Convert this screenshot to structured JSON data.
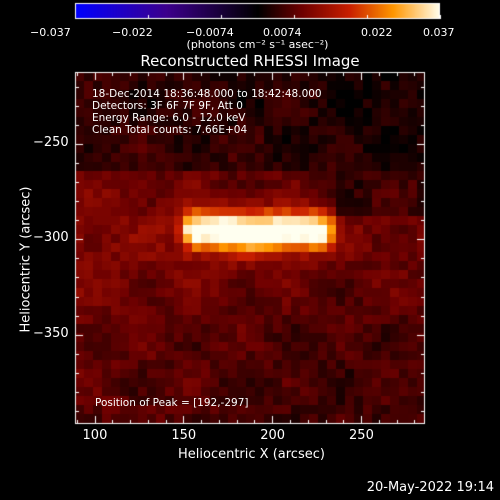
{
  "colorbar": {
    "ticks": [
      "−0.037",
      "−0.022",
      "−0.0074",
      "0.0074",
      "0.022",
      "0.037"
    ],
    "units": "(photons cm⁻² s⁻¹ asec⁻²)",
    "range": [
      -0.037,
      0.037
    ]
  },
  "header": {
    "title": "Reconstructed RHESSI Image"
  },
  "info": {
    "line1": "18-Dec-2014 18:36:48.000 to 18:42:48.000",
    "line2": "Detectors: 3F 6F 7F 9F, Att 0",
    "line3": "Energy Range: 6.0 - 12.0 keV",
    "line4": "Clean     Total counts: 7.66E+04"
  },
  "peak_text": "Position of Peak = [192,-297]",
  "timestamp": "20-May-2022 19:14",
  "chart_data": {
    "type": "heatmap",
    "title": "Reconstructed RHESSI Image",
    "xlabel": "Heliocentric X (arcsec)",
    "ylabel": "Heliocentric Y (arcsec)",
    "xlim": [
      89,
      286
    ],
    "ylim": [
      -397,
      -212
    ],
    "xticks": [
      "100",
      "150",
      "200",
      "250"
    ],
    "yticks": [
      "−250",
      "−300",
      "−350"
    ],
    "peak": [
      192,
      -297
    ],
    "source": {
      "x_range": [
        151,
        232
      ],
      "y_range": [
        -308,
        -283
      ]
    }
  }
}
